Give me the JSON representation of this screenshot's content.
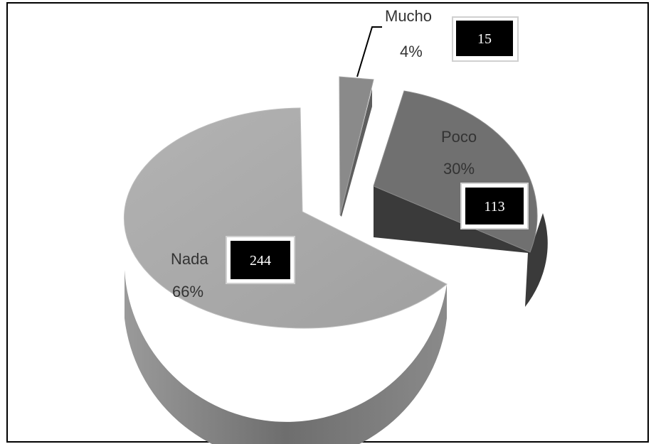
{
  "chart_data": {
    "type": "pie",
    "style": "3d-exploded",
    "slices": [
      {
        "label": "Nada",
        "value": 244,
        "percent": "66%",
        "color": "#a6a6a6"
      },
      {
        "label": "Poco",
        "value": 113,
        "percent": "30%",
        "color": "#737373"
      },
      {
        "label": "Mucho",
        "value": 15,
        "percent": "4%",
        "color": "#8a8a8a"
      }
    ],
    "data_label_box_color": "#000000",
    "data_label_text_color": "#ffffff"
  }
}
